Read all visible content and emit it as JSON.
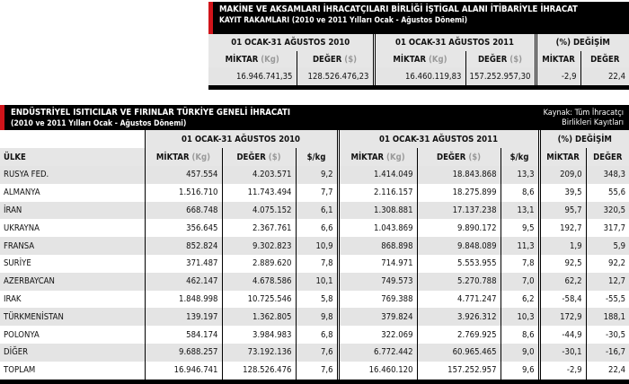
{
  "top": {
    "title_line1": "MAKİNE VE AKSAMLARI İHRACATÇILARI BİRLİĞİ İŞTİGAL ALANI İTİBARİYLE İHRACAT",
    "title_line2": "KAYIT RAKAMLARI (2010 ve 2011 Yılları Ocak - Ağustos Dönemi)",
    "period_2010": "01 OCAK-31 AĞUSTOS 2010",
    "period_2011": "01 OCAK-31 AĞUSTOS 2011",
    "change": "(%) DEĞİŞİM",
    "miktar": "MİKTAR",
    "kg_unit": "(Kg)",
    "deger": "DEĞER",
    "usd_unit": "($)",
    "values": [
      "16.946.741,35",
      "128.526.476,23",
      "16.460.119,83",
      "157.252.957,30",
      "-2,9",
      "22,4"
    ]
  },
  "main": {
    "title_line1": "ENDÜSTRİYEL ISITICILAR VE FIRINLAR TÜRKİYE GENELİ İHRACATI",
    "title_line2": "(2010 ve 2011 Yılları Ocak - Ağustos Dönemi)",
    "source_line1": "Kaynak: Tüm İhracatçı",
    "source_line2": "Birlikleri Kayıtları",
    "period_2010": "01 OCAK-31 AĞUSTOS 2010",
    "period_2011": "01 OCAK-31 AĞUSTOS 2011",
    "change": "(%) DEĞİŞİM",
    "country": "ÜLKE",
    "miktar": "MİKTAR",
    "kg_unit": "(Kg)",
    "deger": "DEĞER",
    "usd_unit": "($)",
    "per_kg": "$/kg",
    "rows": [
      [
        "RUSYA FED.",
        "457.554",
        "4.203.571",
        "9,2",
        "1.414.049",
        "18.843.868",
        "13,3",
        "209,0",
        "348,3"
      ],
      [
        "ALMANYA",
        "1.516.710",
        "11.743.494",
        "7,7",
        "2.116.157",
        "18.275.899",
        "8,6",
        "39,5",
        "55,6"
      ],
      [
        "İRAN",
        "668.748",
        "4.075.152",
        "6,1",
        "1.308.881",
        "17.137.238",
        "13,1",
        "95,7",
        "320,5"
      ],
      [
        "UKRAYNA",
        "356.645",
        "2.367.761",
        "6,6",
        "1.043.869",
        "9.890.172",
        "9,5",
        "192,7",
        "317,7"
      ],
      [
        "FRANSA",
        "852.824",
        "9.302.823",
        "10,9",
        "868.898",
        "9.848.089",
        "11,3",
        "1,9",
        "5,9"
      ],
      [
        "SURİYE",
        "371.487",
        "2.889.620",
        "7,8",
        "714.971",
        "5.553.955",
        "7,8",
        "92,5",
        "92,2"
      ],
      [
        "AZERBAYCAN",
        "462.147",
        "4.678.586",
        "10,1",
        "749.573",
        "5.270.788",
        "7,0",
        "62,2",
        "12,7"
      ],
      [
        "IRAK",
        "1.848.998",
        "10.725.546",
        "5,8",
        "769.388",
        "4.771.247",
        "6,2",
        "-58,4",
        "-55,5"
      ],
      [
        "TÜRKMENİSTAN",
        "139.197",
        "1.362.805",
        "9,8",
        "379.824",
        "3.926.312",
        "10,3",
        "172,9",
        "188,1"
      ],
      [
        "POLONYA",
        "584.174",
        "3.984.983",
        "6,8",
        "322.069",
        "2.769.925",
        "8,6",
        "-44,9",
        "-30,5"
      ],
      [
        "DİĞER",
        "9.688.257",
        "73.192.136",
        "7,6",
        "6.772.442",
        "60.965.465",
        "9,0",
        "-30,1",
        "-16,7"
      ],
      [
        "TOPLAM",
        "16.946.741",
        "128.526.476",
        "7,6",
        "16.460.120",
        "157.252.957",
        "9,6",
        "-2,9",
        "22,4"
      ]
    ]
  }
}
